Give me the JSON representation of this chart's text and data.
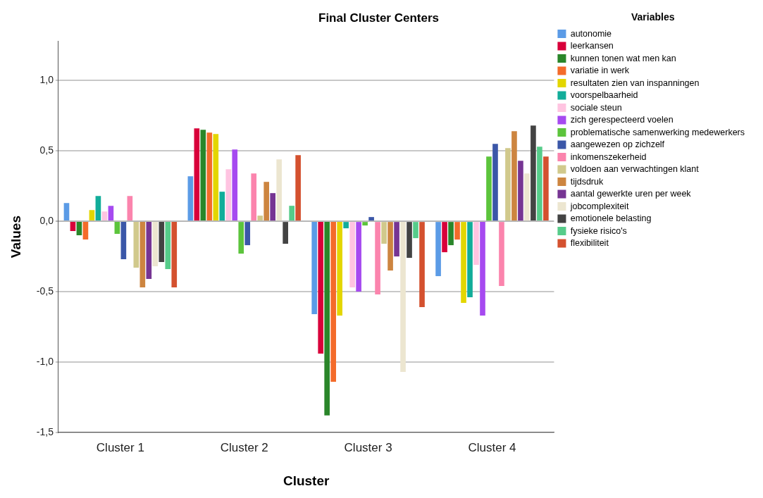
{
  "chart_data": {
    "type": "bar",
    "title": "Final Cluster Centers",
    "xlabel": "Cluster",
    "ylabel": "Values",
    "legend_title": "Variables",
    "legend": "right",
    "grid": "y",
    "categories": [
      "Cluster 1",
      "Cluster 2",
      "Cluster 3",
      "Cluster 4"
    ],
    "ylim": [
      -1.5,
      1.28
    ],
    "yticks": [
      {
        "value": -1.5,
        "label": "-1,5"
      },
      {
        "value": -1,
        "label": "-1,0"
      },
      {
        "value": -0.5,
        "label": "-0,5"
      },
      {
        "value": 0,
        "label": "0,0"
      },
      {
        "value": 0.5,
        "label": "0,5"
      },
      {
        "value": 1,
        "label": "1,0"
      }
    ],
    "series": [
      {
        "name": "autonomie",
        "color": "#5b9be6",
        "values": [
          0.13,
          0.32,
          -0.66,
          -0.39
        ]
      },
      {
        "name": "leerkansen",
        "color": "#d8003a",
        "values": [
          -0.07,
          0.66,
          -0.94,
          -0.22
        ]
      },
      {
        "name": "kunnen tonen wat men kan",
        "color": "#2a862a",
        "values": [
          -0.1,
          0.65,
          -1.38,
          -0.17
        ]
      },
      {
        "name": "variatie in werk",
        "color": "#f46b2a",
        "values": [
          -0.13,
          0.63,
          -1.14,
          -0.13
        ]
      },
      {
        "name": "resultaten zien van inspanningen",
        "color": "#e3d600",
        "values": [
          0.08,
          0.62,
          -0.67,
          -0.58
        ]
      },
      {
        "name": "voorspelbaarheid",
        "color": "#12ad9a",
        "values": [
          0.18,
          0.21,
          -0.05,
          -0.54
        ]
      },
      {
        "name": "sociale steun",
        "color": "#ffc4e1",
        "values": [
          0.07,
          0.37,
          -0.47,
          -0.31
        ]
      },
      {
        "name": "zich gerespecteerd voelen",
        "color": "#a64af0",
        "values": [
          0.11,
          0.51,
          -0.5,
          -0.67
        ]
      },
      {
        "name": "problematische samenwerking medewerkers",
        "color": "#5cc43c",
        "values": [
          -0.09,
          -0.23,
          -0.03,
          0.46
        ]
      },
      {
        "name": "aangewezen op zichzelf",
        "color": "#3b57a8",
        "values": [
          -0.27,
          -0.17,
          0.03,
          0.55
        ]
      },
      {
        "name": "inkomenszekerheid",
        "color": "#fb84ad",
        "values": [
          0.18,
          0.34,
          -0.52,
          -0.46
        ]
      },
      {
        "name": "voldoen aan verwachtingen klant",
        "color": "#d1c98c",
        "values": [
          -0.33,
          0.04,
          -0.16,
          0.52
        ]
      },
      {
        "name": "tijdsdruk",
        "color": "#cd8540",
        "values": [
          -0.47,
          0.28,
          -0.35,
          0.64
        ]
      },
      {
        "name": "aantal gewerkte uren per week",
        "color": "#763593",
        "values": [
          -0.41,
          0.2,
          -0.25,
          0.43
        ]
      },
      {
        "name": "jobcomplexiteit",
        "color": "#ece6d0",
        "values": [
          -0.32,
          0.44,
          -1.07,
          0.34
        ]
      },
      {
        "name": "emotionele belasting",
        "color": "#434343",
        "values": [
          -0.29,
          -0.16,
          -0.26,
          0.68
        ]
      },
      {
        "name": "fysieke risico's",
        "color": "#56cc8a",
        "values": [
          -0.34,
          0.11,
          -0.12,
          0.53
        ]
      },
      {
        "name": "flexibiliteit",
        "color": "#d4512f",
        "values": [
          -0.47,
          0.47,
          -0.61,
          0.46
        ]
      }
    ]
  }
}
